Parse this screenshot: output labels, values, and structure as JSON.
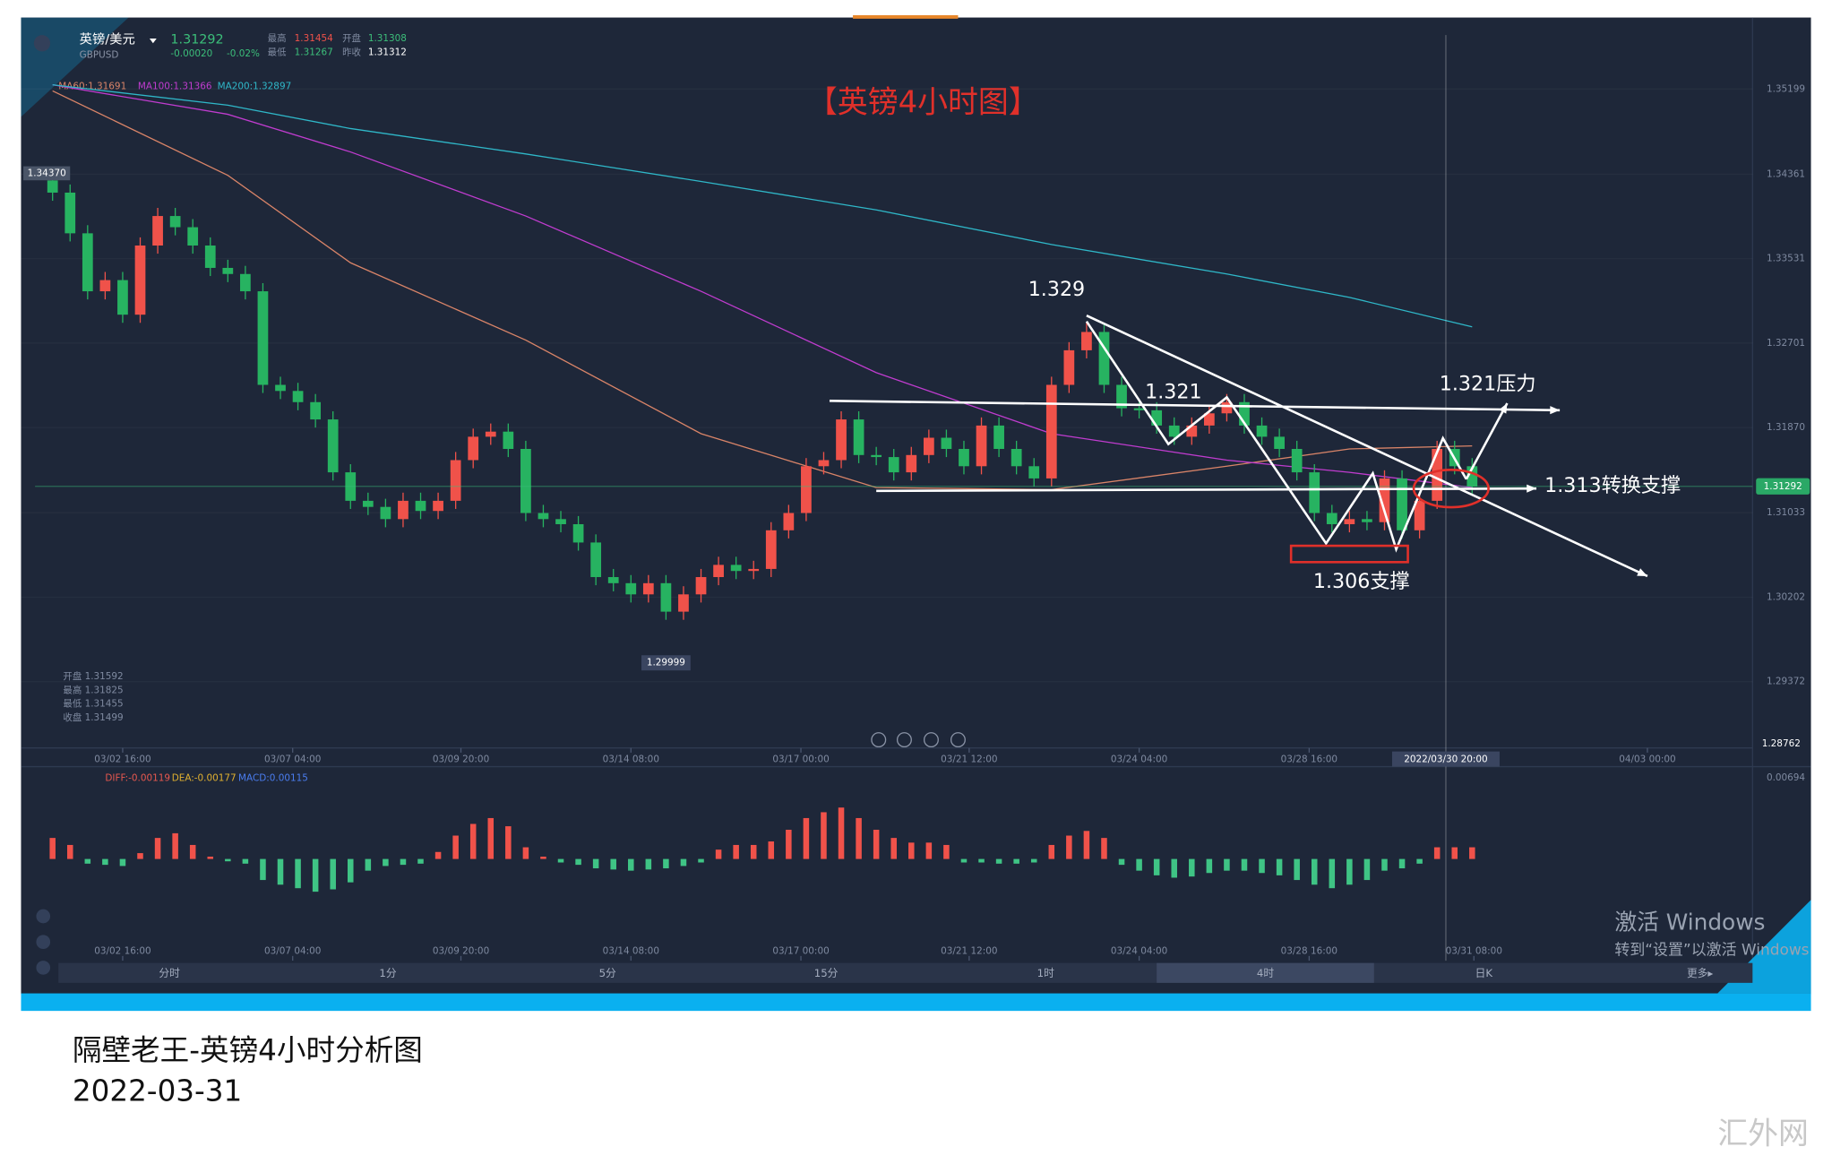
{
  "header": {
    "symbol": "英镑/美元",
    "code": "GBPUSD",
    "price": "1.31292",
    "change": "-0.00020",
    "change_pct": "-0.02%",
    "high_label": "最高",
    "high": "1.31454",
    "open_label": "开盘",
    "open": "1.31308",
    "low_label": "最低",
    "low": "1.31267",
    "prev_label": "昨收",
    "prev": "1.31312"
  },
  "chart_data": [
    {
      "type": "candlestick",
      "title": "【英镑4小时图】",
      "ylim": [
        1.2872,
        1.3589
      ],
      "yticks": [
        1.35199,
        1.34361,
        1.33531,
        1.32701,
        {
          "value": 1.3187,
          "label": "1.31870"
        },
        1.31033,
        1.30202,
        1.29372
      ],
      "xticks": [
        {
          "value": 4,
          "label": "03/02 16:00"
        },
        {
          "value": 13.7,
          "label": "03/07 04:00"
        },
        {
          "value": 23.3,
          "label": "03/09 20:00"
        },
        {
          "value": 33,
          "label": "03/14 08:00"
        },
        {
          "value": 42.7,
          "label": "03/17 00:00"
        },
        {
          "value": 52.3,
          "label": "03/21 12:00"
        },
        {
          "value": 62,
          "label": "03/24 04:00"
        },
        {
          "value": 71.7,
          "label": "03/28 16:00"
        },
        {
          "value": 91,
          "label": "04/03 00:00"
        }
      ],
      "crosshair": {
        "value": 79.5,
        "label": "2022/03/30 20:00"
      },
      "up_color": "#f0524a",
      "down_color": "#27b361",
      "grid": true,
      "open": [
        1.343,
        1.3418,
        1.3378,
        1.3321,
        1.3332,
        1.3298,
        1.3366,
        1.3395,
        1.3384,
        1.3366,
        1.3344,
        1.3338,
        1.3321,
        1.3229,
        1.3223,
        1.3212,
        1.3195,
        1.3143,
        1.3115,
        1.3109,
        1.3097,
        1.3115,
        1.3105,
        1.3115,
        1.3155,
        1.3178,
        1.3183,
        1.3166,
        1.3103,
        1.3097,
        1.3092,
        1.3074,
        1.304,
        1.3034,
        1.3023,
        1.3034,
        1.3006,
        1.3023,
        1.304,
        1.3052,
        1.3046,
        1.3048,
        1.3086,
        1.3103,
        1.3149,
        1.3155,
        1.3195,
        1.316,
        1.3158,
        1.3143,
        1.316,
        1.3177,
        1.3166,
        1.3149,
        1.3189,
        1.3166,
        1.3149,
        1.3137,
        1.3229,
        1.3263,
        1.3281,
        1.3229,
        1.3206,
        1.3204,
        1.3189,
        1.3178,
        1.3189,
        1.3201,
        1.3212,
        1.3189,
        1.3178,
        1.3166,
        1.3143,
        1.3103,
        1.3092,
        1.3097,
        1.3094,
        1.3137,
        1.3086,
        1.3115,
        1.3166,
        1.3149
      ],
      "high": [
        1.3438,
        1.3426,
        1.3386,
        1.334,
        1.334,
        1.3374,
        1.3403,
        1.3403,
        1.3392,
        1.3374,
        1.3352,
        1.3346,
        1.3329,
        1.3237,
        1.3231,
        1.322,
        1.3203,
        1.3151,
        1.3123,
        1.3117,
        1.3123,
        1.3123,
        1.3123,
        1.3163,
        1.3186,
        1.3191,
        1.3191,
        1.3174,
        1.3111,
        1.3105,
        1.31,
        1.3082,
        1.3048,
        1.3042,
        1.3042,
        1.3042,
        1.3031,
        1.3048,
        1.306,
        1.306,
        1.3056,
        1.3094,
        1.3111,
        1.3157,
        1.3163,
        1.3203,
        1.3203,
        1.3168,
        1.3166,
        1.3168,
        1.3185,
        1.3185,
        1.3174,
        1.3197,
        1.3197,
        1.3174,
        1.3157,
        1.3237,
        1.3271,
        1.329,
        1.3289,
        1.3237,
        1.3214,
        1.3212,
        1.3197,
        1.3197,
        1.3209,
        1.322,
        1.322,
        1.3197,
        1.3186,
        1.3174,
        1.3151,
        1.3111,
        1.3105,
        1.3105,
        1.3145,
        1.3145,
        1.3123,
        1.3174,
        1.3174,
        1.3157
      ],
      "low": [
        1.341,
        1.337,
        1.3313,
        1.3313,
        1.329,
        1.329,
        1.3358,
        1.3376,
        1.3358,
        1.3336,
        1.333,
        1.3313,
        1.3221,
        1.3215,
        1.3204,
        1.3187,
        1.3135,
        1.3107,
        1.3101,
        1.3089,
        1.3089,
        1.3097,
        1.3097,
        1.3107,
        1.3147,
        1.317,
        1.3158,
        1.3095,
        1.3089,
        1.3084,
        1.3066,
        1.3032,
        1.3026,
        1.3015,
        1.3015,
        1.2998,
        1.2998,
        1.3015,
        1.3032,
        1.3038,
        1.3038,
        1.304,
        1.3078,
        1.3095,
        1.3141,
        1.3147,
        1.3152,
        1.315,
        1.3135,
        1.3135,
        1.3152,
        1.3158,
        1.3141,
        1.3141,
        1.3158,
        1.3141,
        1.3129,
        1.3129,
        1.3221,
        1.3255,
        1.3221,
        1.3198,
        1.3196,
        1.3181,
        1.317,
        1.317,
        1.3181,
        1.3193,
        1.3181,
        1.317,
        1.3158,
        1.3135,
        1.3095,
        1.3084,
        1.3084,
        1.3086,
        1.3086,
        1.3078,
        1.3078,
        1.3107,
        1.3141,
        1.3121
      ],
      "close": [
        1.3418,
        1.3378,
        1.3321,
        1.3332,
        1.3298,
        1.3366,
        1.3395,
        1.3384,
        1.3366,
        1.3344,
        1.3338,
        1.3321,
        1.3229,
        1.3223,
        1.3212,
        1.3195,
        1.3143,
        1.3115,
        1.3109,
        1.3097,
        1.3115,
        1.3105,
        1.3115,
        1.3155,
        1.3178,
        1.3183,
        1.3166,
        1.3103,
        1.3097,
        1.3092,
        1.3074,
        1.304,
        1.3034,
        1.3023,
        1.3034,
        1.3006,
        1.3023,
        1.304,
        1.3052,
        1.3046,
        1.3048,
        1.3086,
        1.3103,
        1.3149,
        1.3155,
        1.3195,
        1.316,
        1.3158,
        1.3143,
        1.316,
        1.3177,
        1.3166,
        1.3149,
        1.3189,
        1.3166,
        1.3149,
        1.3137,
        1.3229,
        1.3263,
        1.3281,
        1.3229,
        1.3206,
        1.3204,
        1.3189,
        1.3178,
        1.3189,
        1.3201,
        1.3212,
        1.3189,
        1.3178,
        1.3166,
        1.3143,
        1.3103,
        1.3092,
        1.3097,
        1.3094,
        1.3137,
        1.3086,
        1.3115,
        1.3166,
        1.3149,
        1.3129
      ],
      "series": [
        {
          "name": "MA60:1.31691",
          "color": "#d98468",
          "x": [
            0,
            10,
            17,
            27,
            37,
            47,
            57,
            67,
            74,
            81
          ],
          "values": [
            1.3518,
            1.3435,
            1.3349,
            1.3273,
            1.3181,
            1.3128,
            1.3126,
            1.3149,
            1.3166,
            1.3169
          ]
        },
        {
          "name": "MA100:1.31366",
          "color": "#c03ccf",
          "x": [
            0,
            10,
            17,
            27,
            37,
            47,
            57,
            67,
            74,
            81
          ],
          "values": [
            1.3524,
            1.3495,
            1.3458,
            1.3395,
            1.3321,
            1.3241,
            1.3181,
            1.3155,
            1.3143,
            1.3128
          ]
        },
        {
          "name": "MA200:1.32897",
          "color": "#2fb7c8",
          "x": [
            0,
            10,
            17,
            27,
            37,
            47,
            57,
            67,
            74,
            81
          ],
          "values": [
            1.3524,
            1.3504,
            1.3481,
            1.3456,
            1.3429,
            1.3401,
            1.3367,
            1.3338,
            1.3315,
            1.3286
          ]
        }
      ],
      "price_marker": 1.31292,
      "high_marker": {
        "value": 1.3437,
        "label": "1.34370"
      },
      "low_marker": 1.29999,
      "bottom_marker": 1.28762,
      "annotations": [
        "1.329",
        "1.321",
        "1.321压力",
        "1.313转换支撑",
        "1.306支撑"
      ],
      "info_lines": [
        "开盘 1.31592",
        "最高 1.31825",
        "最低 1.31455",
        "收盘 1.31499"
      ]
    },
    {
      "type": "bar",
      "ylim": [
        -0.0085,
        0.0077
      ],
      "yticks": [
        0.00694
      ],
      "indicators": [
        {
          "name": "DIFF:-0.00119",
          "color": "#e8584f"
        },
        {
          "name": "DEA:-0.00177",
          "color": "#e0b030"
        },
        {
          "name": "MACD:0.00115",
          "color": "#4a7df0"
        }
      ],
      "up_color": "#f0524a",
      "down_color": "#3fc485",
      "xticks": [
        {
          "value": 4,
          "label": "03/02 16:00"
        },
        {
          "value": 13.7,
          "label": "03/07 04:00"
        },
        {
          "value": 23.3,
          "label": "03/09 20:00"
        },
        {
          "value": 33,
          "label": "03/14 08:00"
        },
        {
          "value": 42.7,
          "label": "03/17 00:00"
        },
        {
          "value": 52.3,
          "label": "03/21 12:00"
        },
        {
          "value": 62,
          "label": "03/24 04:00"
        },
        {
          "value": 71.7,
          "label": "03/28 16:00"
        },
        {
          "value": 81.1,
          "label": "03/31 08:00"
        }
      ],
      "values": [
        0.0018,
        0.0012,
        -0.0004,
        -0.0005,
        -0.0006,
        0.0005,
        0.0018,
        0.0022,
        0.0012,
        0.0002,
        -0.0002,
        -0.0004,
        -0.0018,
        -0.0022,
        -0.0025,
        -0.0028,
        -0.0026,
        -0.002,
        -0.001,
        -0.0006,
        -0.0005,
        -0.0004,
        0.0006,
        0.002,
        0.003,
        0.0035,
        0.0028,
        0.001,
        0.0002,
        -0.0003,
        -0.0005,
        -0.0008,
        -0.0009,
        -0.001,
        -0.0009,
        -0.0008,
        -0.0006,
        -0.0003,
        0.0008,
        0.0012,
        0.0012,
        0.0015,
        0.0025,
        0.0035,
        0.004,
        0.0044,
        0.0035,
        0.0025,
        0.0018,
        0.0014,
        0.0014,
        0.0012,
        -0.0003,
        -0.0003,
        -0.0004,
        -0.0004,
        -0.0003,
        0.0012,
        0.002,
        0.0024,
        0.0018,
        -0.0005,
        -0.001,
        -0.0014,
        -0.0016,
        -0.0015,
        -0.0012,
        -0.001,
        -0.001,
        -0.0012,
        -0.0014,
        -0.0018,
        -0.0022,
        -0.0025,
        -0.0022,
        -0.0018,
        -0.001,
        -0.0008,
        -0.0004,
        0.001,
        0.001,
        0.001
      ]
    }
  ],
  "toolbar": [
    "分时",
    "1分",
    "5分",
    "15分",
    "1时",
    "4时",
    "日K",
    "更多▸"
  ],
  "watermark": {
    "line1": "激活 Windows",
    "line2": "转到“设置”以激活 Windows",
    "site": "汇外网"
  },
  "footer": {
    "title": "隔壁老王-英镑4小时分析图",
    "date": "2022-03-31"
  }
}
